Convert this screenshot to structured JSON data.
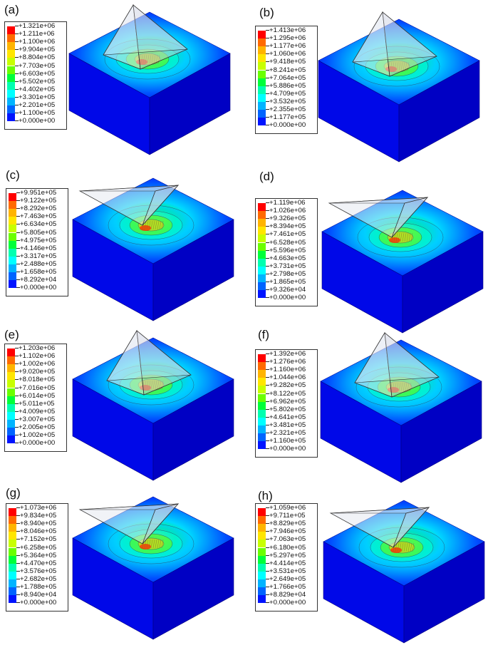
{
  "colors": [
    "#ff0000",
    "#ff6a00",
    "#ffb400",
    "#ffe600",
    "#c8ff00",
    "#6aff00",
    "#00ff3a",
    "#00ffb0",
    "#00ffff",
    "#00b4ff",
    "#0064ff",
    "#0014ff",
    "#0000ff"
  ],
  "panels": [
    {
      "label": "(a)",
      "values": [
        "+1.321e+06",
        "+1.211e+06",
        "+1.100e+06",
        "+9.904e+05",
        "+8.804e+05",
        "+7.703e+05",
        "+6.603e+05",
        "+5.502e+05",
        "+4.402e+05",
        "+3.301e+05",
        "+2.201e+05",
        "+1.100e+05",
        "+0.000e+00"
      ]
    },
    {
      "label": "(b)",
      "values": [
        "+1.413e+06",
        "+1.295e+06",
        "+1.177e+06",
        "+1.060e+06",
        "+9.418e+05",
        "+8.241e+05",
        "+7.064e+05",
        "+5.886e+05",
        "+4.709e+05",
        "+3.532e+05",
        "+2.355e+05",
        "+1.177e+05",
        "+0.000e+00"
      ]
    },
    {
      "label": "(c)",
      "values": [
        "+9.951e+05",
        "+9.122e+05",
        "+8.292e+05",
        "+7.463e+05",
        "+6.634e+05",
        "+5.805e+05",
        "+4.975e+05",
        "+4.146e+05",
        "+3.317e+05",
        "+2.488e+05",
        "+1.658e+05",
        "+8.292e+04",
        "+0.000e+00"
      ]
    },
    {
      "label": "(d)",
      "values": [
        "+1.119e+06",
        "+1.026e+06",
        "+9.326e+05",
        "+8.394e+05",
        "+7.461e+05",
        "+6.528e+05",
        "+5.596e+05",
        "+4.663e+05",
        "+3.731e+05",
        "+2.798e+05",
        "+1.865e+05",
        "+9.326e+04",
        "+0.000e+00"
      ]
    },
    {
      "label": "(e)",
      "values": [
        "+1.203e+06",
        "+1.102e+06",
        "+1.002e+06",
        "+9.020e+05",
        "+8.018e+05",
        "+7.016e+05",
        "+6.014e+05",
        "+5.011e+05",
        "+4.009e+05",
        "+3.007e+05",
        "+2.005e+05",
        "+1.002e+05",
        "+0.000e+00"
      ]
    },
    {
      "label": "(f)",
      "values": [
        "+1.392e+06",
        "+1.276e+06",
        "+1.160e+06",
        "+1.044e+06",
        "+9.282e+05",
        "+8.122e+05",
        "+6.962e+05",
        "+5.802e+05",
        "+4.641e+05",
        "+3.481e+05",
        "+2.321e+05",
        "+1.160e+05",
        "+0.000e+00"
      ]
    },
    {
      "label": "(g)",
      "values": [
        "+1.073e+06",
        "+9.834e+05",
        "+8.940e+05",
        "+8.046e+05",
        "+7.152e+05",
        "+6.258e+05",
        "+5.364e+05",
        "+4.470e+05",
        "+3.576e+05",
        "+2.682e+05",
        "+1.788e+05",
        "+8.940e+04",
        "+0.000e+00"
      ]
    },
    {
      "label": "(h)",
      "values": [
        "+1.059e+06",
        "+9.711e+05",
        "+8.829e+05",
        "+7.946e+05",
        "+7.063e+05",
        "+6.180e+05",
        "+5.297e+05",
        "+4.414e+05",
        "+3.531e+05",
        "+2.649e+05",
        "+1.766e+05",
        "+8.829e+04",
        "+0.000e+00"
      ]
    }
  ]
}
